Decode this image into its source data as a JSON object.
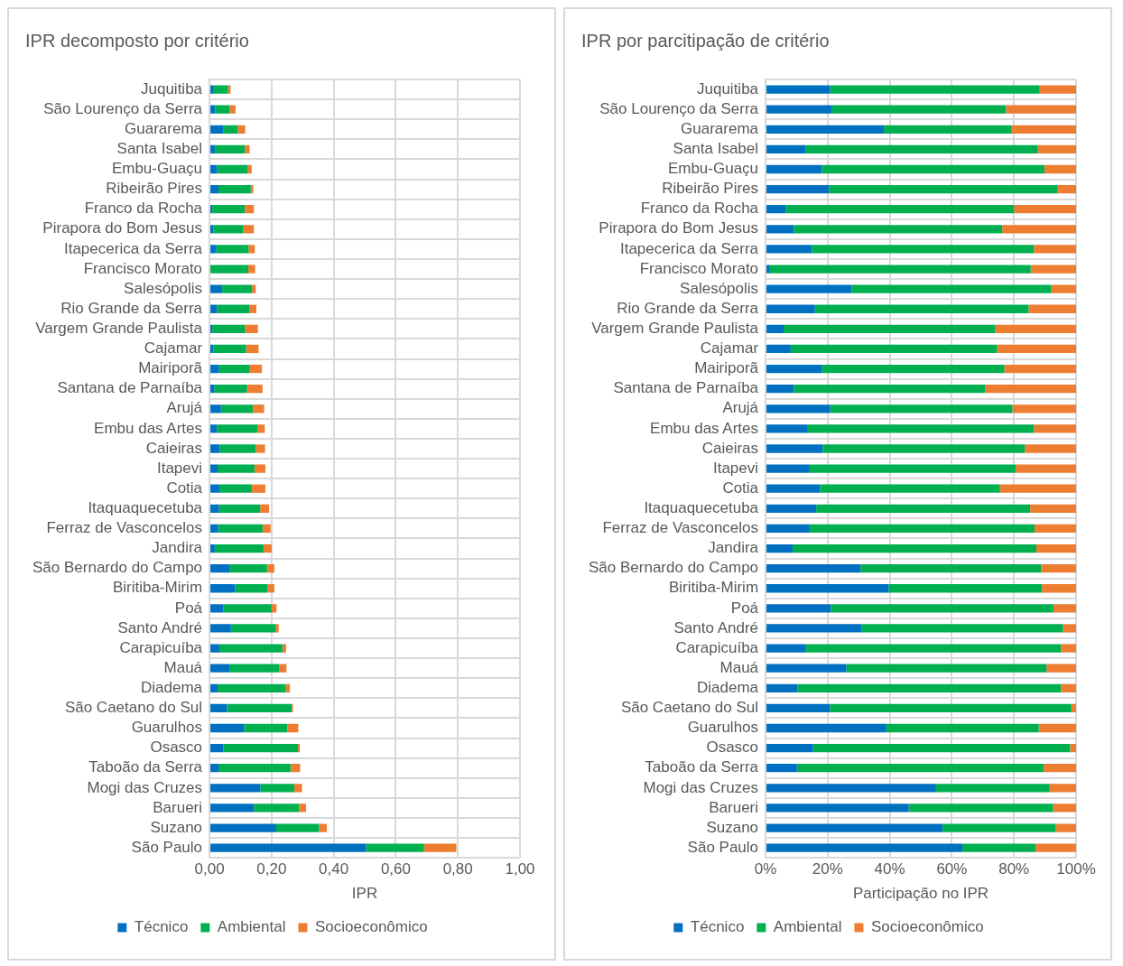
{
  "chart_data": [
    {
      "type": "bar",
      "orientation": "horizontal",
      "stacked": true,
      "title": "IPR decomposto por critério",
      "xlabel": "IPR",
      "grid": true,
      "legend": "bottom",
      "categories": [
        "Juquitiba",
        "São Lourenço da Serra",
        "Guararema",
        "Santa Isabel",
        "Embu-Guaçu",
        "Ribeirão Pires",
        "Franco da Rocha",
        "Pirapora do Bom Jesus",
        "Itapecerica da Serra",
        "Francisco Morato",
        "Salesópolis",
        "Rio Grande da Serra",
        "Vargem Grande Paulista",
        "Cajamar",
        "Mairiporã",
        "Santana de Parnaíba",
        "Arujá",
        "Embu das Artes",
        "Caieiras",
        "Itapevi",
        "Cotia",
        "Itaquaquecetuba",
        "Ferraz de Vasconcelos",
        "Jandira",
        "São Bernardo do Campo",
        "Biritiba-Mirim",
        "Poá",
        "Santo André",
        "Carapicuíba",
        "Mauá",
        "Diadema",
        "São Caetano do Sul",
        "Guarulhos",
        "Osasco",
        "Taboão da Serra",
        "Mogi das Cruzes",
        "Barueri",
        "Suzano",
        "São Paulo"
      ],
      "xlim": [
        0,
        1
      ],
      "xticks": [
        {
          "value": 0,
          "label": "0,00"
        },
        {
          "value": 0.2,
          "label": "0,20"
        },
        {
          "value": 0.4,
          "label": "0,40"
        },
        {
          "value": 0.6,
          "label": "0,60"
        },
        {
          "value": 0.8,
          "label": "0,80"
        },
        {
          "value": 1,
          "label": "1,00"
        }
      ],
      "series": [
        {
          "name": "Técnico",
          "color": "#0070c0",
          "values": [
            0.014,
            0.018,
            0.044,
            0.017,
            0.025,
            0.029,
            0.009,
            0.013,
            0.022,
            null,
            0.041,
            0.024,
            0.009,
            0.013,
            0.031,
            0.016,
            0.037,
            0.024,
            0.033,
            0.026,
            0.032,
            0.031,
            0.028,
            0.017,
            0.064,
            0.083,
            0.045,
            0.069,
            0.032,
            0.064,
            0.026,
            0.056,
            0.111,
            0.045,
            0.029,
            0.164,
            0.143,
            0.215,
            0.504
          ]
        },
        {
          "name": "Ambiental",
          "color": "#00b050",
          "values": [
            0.046,
            0.047,
            0.047,
            0.097,
            0.097,
            0.104,
            0.105,
            0.096,
            0.104,
            0.125,
            0.096,
            0.104,
            0.106,
            0.105,
            0.099,
            0.105,
            0.103,
            0.13,
            0.116,
            0.119,
            0.104,
            0.132,
            0.143,
            0.157,
            0.121,
            0.103,
            0.155,
            0.145,
            0.203,
            0.16,
            0.22,
            0.209,
            0.14,
            0.24,
            0.232,
            0.109,
            0.145,
            0.138,
            0.187
          ]
        },
        {
          "name": "Socioeconômico",
          "color": "#ed7d31",
          "values": [
            0.008,
            0.019,
            0.024,
            0.015,
            0.014,
            0.008,
            0.029,
            0.034,
            0.02,
            0.022,
            0.012,
            0.023,
            0.041,
            0.04,
            0.039,
            0.05,
            0.036,
            0.024,
            0.03,
            0.035,
            0.044,
            0.029,
            0.026,
            0.026,
            0.024,
            0.023,
            0.016,
            0.009,
            0.012,
            0.024,
            0.013,
            0.004,
            0.035,
            0.006,
            0.031,
            0.025,
            0.023,
            0.025,
            0.104
          ]
        }
      ]
    },
    {
      "type": "bar",
      "orientation": "horizontal",
      "stacked": true,
      "title": "IPR por parcitipação de critério",
      "xlabel": "Participação no IPR",
      "grid": true,
      "legend": "bottom",
      "categories": [
        "Juquitiba",
        "São Lourenço da Serra",
        "Guararema",
        "Santa Isabel",
        "Embu-Guaçu",
        "Ribeirão Pires",
        "Franco da Rocha",
        "Pirapora do Bom Jesus",
        "Itapecerica da Serra",
        "Francisco Morato",
        "Salesópolis",
        "Rio Grande da Serra",
        "Vargem Grande Paulista",
        "Cajamar",
        "Mairiporã",
        "Santana de Parnaíba",
        "Arujá",
        "Embu das Artes",
        "Caieiras",
        "Itapevi",
        "Cotia",
        "Itaquaquecetuba",
        "Ferraz de Vasconcelos",
        "Jandira",
        "São Bernardo do Campo",
        "Biritiba-Mirim",
        "Poá",
        "Santo André",
        "Carapicuíba",
        "Mauá",
        "Diadema",
        "São Caetano do Sul",
        "Guarulhos",
        "Osasco",
        "Taboão da Serra",
        "Mogi das Cruzes",
        "Barueri",
        "Suzano",
        "São Paulo"
      ],
      "xlim": [
        0,
        100
      ],
      "xticks": [
        {
          "value": 0,
          "label": "0%"
        },
        {
          "value": 20,
          "label": "20%"
        },
        {
          "value": 40,
          "label": "40%"
        },
        {
          "value": 60,
          "label": "60%"
        },
        {
          "value": 80,
          "label": "80%"
        },
        {
          "value": 100,
          "label": "100%"
        }
      ],
      "series": [
        {
          "name": "Técnico",
          "color": "#0070c0",
          "values": [
            20.8,
            21.4,
            38.1,
            12.8,
            18.1,
            20.5,
            6.4,
            9.1,
            14.9,
            1.4,
            27.7,
            15.9,
            5.8,
            8.1,
            18.2,
            9.1,
            20.8,
            13.6,
            18.4,
            14.2,
            17.5,
            16.3,
            14.2,
            8.7,
            30.6,
            39.6,
            21.0,
            31.0,
            13.0,
            26.0,
            10.2,
            20.7,
            38.9,
            15.3,
            10.1,
            54.9,
            46.1,
            57.0,
            63.4
          ]
        },
        {
          "name": "Ambiental",
          "color": "#00b050",
          "values": [
            67.5,
            56.0,
            41.2,
            74.9,
            71.7,
            73.6,
            73.6,
            67.1,
            71.5,
            84.0,
            64.3,
            68.8,
            68.2,
            66.5,
            58.7,
            61.7,
            58.7,
            72.8,
            65.1,
            66.4,
            58.0,
            68.9,
            72.4,
            78.5,
            58.1,
            49.4,
            71.7,
            64.8,
            82.2,
            64.5,
            85.0,
            77.8,
            49.1,
            82.8,
            79.4,
            36.6,
            46.5,
            36.5,
            23.5
          ]
        },
        {
          "name": "Socioeconômico",
          "color": "#ed7d31",
          "values": [
            11.7,
            22.6,
            20.7,
            12.3,
            10.2,
            5.9,
            20.0,
            23.8,
            13.6,
            14.6,
            8.0,
            15.3,
            26.0,
            25.4,
            23.1,
            29.2,
            20.5,
            13.6,
            16.5,
            19.4,
            24.5,
            14.8,
            13.4,
            12.8,
            11.3,
            11.0,
            7.3,
            4.2,
            4.8,
            9.5,
            4.8,
            1.5,
            12.0,
            1.9,
            10.5,
            8.5,
            7.4,
            6.5,
            13.1
          ]
        }
      ]
    }
  ]
}
